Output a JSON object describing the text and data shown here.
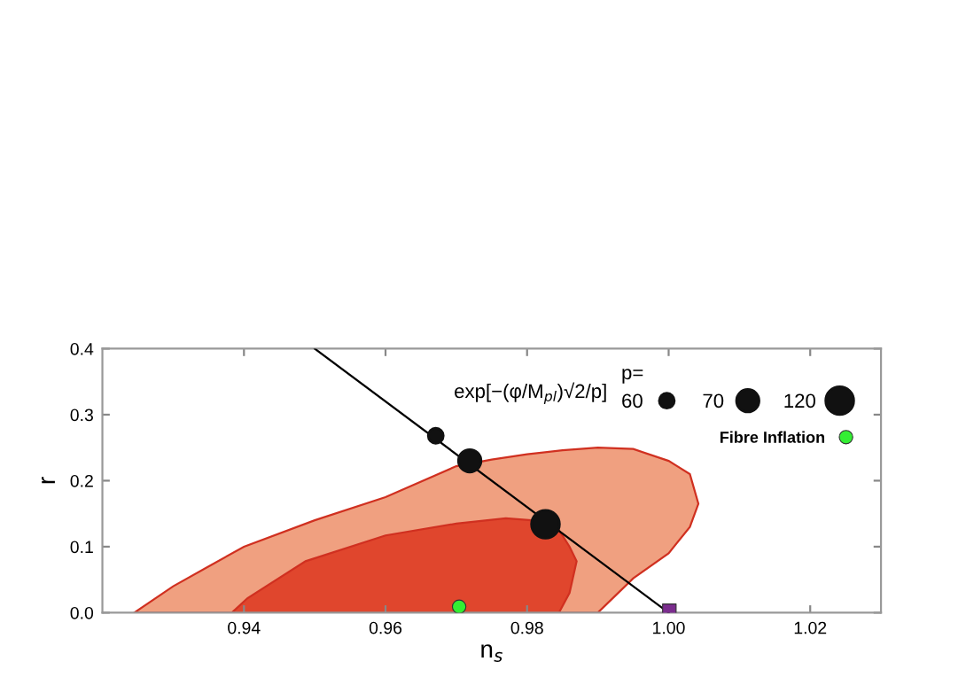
{
  "chart_data": {
    "type": "area",
    "xlabel": "n$_{s}$",
    "ylabel": "r",
    "legend_title": "p=",
    "legend": "top right",
    "grid": false,
    "annotations": [
      "exp[−(φ/M$_{pl}$)√2/p]"
    ],
    "xlim": [
      0.92,
      1.03
    ],
    "xticks": [
      0.94,
      0.96,
      0.98,
      {
        "value": 1.0,
        "label": "1.00"
      },
      1.02
    ],
    "ylim": [
      0.0,
      0.4
    ],
    "yticks": [
      {
        "value": 0.0,
        "label": "0.0"
      },
      0.1,
      0.2,
      0.3,
      0.4
    ],
    "series": [
      {
        "color": "#f0a080",
        "x": [
          0.9245,
          0.93,
          0.935,
          0.94,
          0.95,
          0.96,
          0.97,
          0.975,
          0.98,
          0.985,
          0.99,
          0.995,
          1.0,
          1.003,
          1.0042,
          1.003,
          1.0,
          0.995,
          0.99
        ],
        "values": [
          0.0,
          0.04,
          0.07,
          0.1,
          0.14,
          0.175,
          0.222,
          0.232,
          0.24,
          0.246,
          0.25,
          0.248,
          0.23,
          0.21,
          0.165,
          0.13,
          0.09,
          0.052,
          0.0
        ]
      },
      {
        "color": "#e0462d",
        "x": [
          0.9383,
          0.9405,
          0.9487,
          0.96,
          0.97,
          0.977,
          0.9818,
          0.9845,
          0.985,
          0.986,
          0.987,
          0.986,
          0.985,
          0.9845
        ],
        "values": [
          0.0,
          0.022,
          0.078,
          0.117,
          0.135,
          0.143,
          0.139,
          0.125,
          0.117,
          0.1,
          0.078,
          0.03,
          0.01,
          0.0
        ]
      },
      {
        "type": "line",
        "color": "#000000",
        "x": [
          0.95,
          1.0
        ],
        "values": [
          0.4,
          0.0
        ]
      },
      {
        "type": "bubble",
        "name": "60",
        "color": "#111111",
        "x": [
          0.9671
        ],
        "values": [
          0.268
        ],
        "sizes": [
          0.29
        ]
      },
      {
        "type": "bubble",
        "name": "70",
        "color": "#111111",
        "x": [
          0.9719
        ],
        "values": [
          0.23
        ],
        "sizes": [
          0.65
        ]
      },
      {
        "type": "bubble",
        "name": "120",
        "color": "#111111",
        "x": [
          0.9826
        ],
        "values": [
          0.134
        ],
        "sizes": [
          1
        ]
      },
      {
        "type": "scatter",
        "name": "Fibre Inflation",
        "color": "#33ee33",
        "marker": "circle",
        "x": [
          0.9704
        ],
        "values": [
          0.009
        ]
      },
      {
        "type": "scatter",
        "color": "#7b2d8e",
        "marker": "square",
        "x": [
          1.0001
        ],
        "values": [
          0.003
        ]
      }
    ]
  }
}
